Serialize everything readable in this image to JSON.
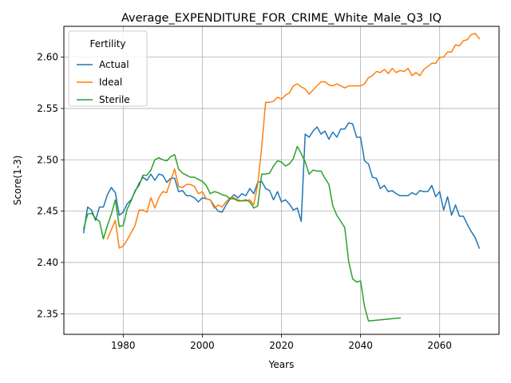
{
  "chart_data": {
    "type": "line",
    "title": "Average_EXPENDITURE_FOR_CRIME_White_Male_Q3_IQ",
    "xlabel": "Years",
    "ylabel": "Score(1-3)",
    "xlim": [
      1965,
      2075
    ],
    "ylim": [
      2.33,
      2.63
    ],
    "xticks": [
      1980,
      2000,
      2020,
      2040,
      2060
    ],
    "yticks": [
      2.35,
      2.4,
      2.45,
      2.5,
      2.55,
      2.6
    ],
    "ytick_labels": [
      "2.35",
      "2.40",
      "2.45",
      "2.50",
      "2.55",
      "2.60"
    ],
    "grid": true,
    "legend": {
      "title": "Fertility",
      "position": "upper-left"
    },
    "series": [
      {
        "name": "Actual",
        "color": "#1f77b4",
        "points": [
          [
            1970,
            2.429
          ],
          [
            1971,
            2.454
          ],
          [
            1972,
            2.451
          ],
          [
            1973,
            2.441
          ],
          [
            1974,
            2.454
          ],
          [
            1975,
            2.454
          ],
          [
            1976,
            2.466
          ],
          [
            1977,
            2.473
          ],
          [
            1978,
            2.468
          ],
          [
            1979,
            2.446
          ],
          [
            1980,
            2.449
          ],
          [
            1981,
            2.457
          ],
          [
            1982,
            2.461
          ],
          [
            1983,
            2.469
          ],
          [
            1984,
            2.477
          ],
          [
            1985,
            2.483
          ],
          [
            1986,
            2.48
          ],
          [
            1987,
            2.486
          ],
          [
            1988,
            2.48
          ],
          [
            1989,
            2.486
          ],
          [
            1990,
            2.485
          ],
          [
            1991,
            2.478
          ],
          [
            1992,
            2.482
          ],
          [
            1993,
            2.482
          ],
          [
            1994,
            2.469
          ],
          [
            1995,
            2.47
          ],
          [
            1996,
            2.465
          ],
          [
            1997,
            2.465
          ],
          [
            1998,
            2.463
          ],
          [
            1999,
            2.459
          ],
          [
            2000,
            2.463
          ],
          [
            2001,
            2.462
          ],
          [
            2002,
            2.461
          ],
          [
            2003,
            2.455
          ],
          [
            2004,
            2.45
          ],
          [
            2005,
            2.449
          ],
          [
            2006,
            2.456
          ],
          [
            2007,
            2.462
          ],
          [
            2008,
            2.466
          ],
          [
            2009,
            2.463
          ],
          [
            2010,
            2.467
          ],
          [
            2011,
            2.465
          ],
          [
            2012,
            2.472
          ],
          [
            2013,
            2.467
          ],
          [
            2014,
            2.478
          ],
          [
            2015,
            2.479
          ],
          [
            2016,
            2.472
          ],
          [
            2017,
            2.47
          ],
          [
            2018,
            2.461
          ],
          [
            2019,
            2.469
          ],
          [
            2020,
            2.459
          ],
          [
            2021,
            2.461
          ],
          [
            2022,
            2.457
          ],
          [
            2023,
            2.451
          ],
          [
            2024,
            2.453
          ],
          [
            2025,
            2.44
          ],
          [
            2026,
            2.525
          ],
          [
            2027,
            2.522
          ],
          [
            2028,
            2.528
          ],
          [
            2029,
            2.532
          ],
          [
            2030,
            2.525
          ],
          [
            2031,
            2.528
          ],
          [
            2032,
            2.52
          ],
          [
            2033,
            2.527
          ],
          [
            2034,
            2.522
          ],
          [
            2035,
            2.53
          ],
          [
            2036,
            2.53
          ],
          [
            2037,
            2.536
          ],
          [
            2038,
            2.535
          ],
          [
            2039,
            2.522
          ],
          [
            2040,
            2.522
          ],
          [
            2041,
            2.499
          ],
          [
            2042,
            2.496
          ],
          [
            2043,
            2.483
          ],
          [
            2044,
            2.482
          ],
          [
            2045,
            2.472
          ],
          [
            2046,
            2.475
          ],
          [
            2047,
            2.469
          ],
          [
            2048,
            2.47
          ],
          [
            2049,
            2.467
          ],
          [
            2050,
            2.465
          ],
          [
            2051,
            2.465
          ],
          [
            2052,
            2.465
          ],
          [
            2053,
            2.468
          ],
          [
            2054,
            2.466
          ],
          [
            2055,
            2.47
          ],
          [
            2056,
            2.469
          ],
          [
            2057,
            2.469
          ],
          [
            2058,
            2.475
          ],
          [
            2059,
            2.464
          ],
          [
            2060,
            2.469
          ],
          [
            2061,
            2.451
          ],
          [
            2062,
            2.464
          ],
          [
            2063,
            2.446
          ],
          [
            2064,
            2.456
          ],
          [
            2065,
            2.445
          ],
          [
            2066,
            2.445
          ],
          [
            2067,
            2.437
          ],
          [
            2068,
            2.43
          ],
          [
            2069,
            2.424
          ],
          [
            2070,
            2.414
          ]
        ]
      },
      {
        "name": "Ideal",
        "color": "#ff7f0e",
        "points": [
          [
            1976,
            2.423
          ],
          [
            1977,
            2.432
          ],
          [
            1978,
            2.441
          ],
          [
            1979,
            2.414
          ],
          [
            1980,
            2.416
          ],
          [
            1981,
            2.422
          ],
          [
            1982,
            2.429
          ],
          [
            1983,
            2.436
          ],
          [
            1984,
            2.451
          ],
          [
            1985,
            2.451
          ],
          [
            1986,
            2.449
          ],
          [
            1987,
            2.463
          ],
          [
            1988,
            2.453
          ],
          [
            1989,
            2.463
          ],
          [
            1990,
            2.469
          ],
          [
            1991,
            2.468
          ],
          [
            1992,
            2.48
          ],
          [
            1993,
            2.491
          ],
          [
            1994,
            2.474
          ],
          [
            1995,
            2.473
          ],
          [
            1996,
            2.476
          ],
          [
            1997,
            2.476
          ],
          [
            1998,
            2.474
          ],
          [
            1999,
            2.467
          ],
          [
            2000,
            2.469
          ],
          [
            2001,
            2.462
          ],
          [
            2002,
            2.461
          ],
          [
            2003,
            2.453
          ],
          [
            2004,
            2.456
          ],
          [
            2005,
            2.454
          ],
          [
            2006,
            2.459
          ],
          [
            2007,
            2.463
          ],
          [
            2008,
            2.463
          ],
          [
            2009,
            2.461
          ],
          [
            2010,
            2.46
          ],
          [
            2011,
            2.46
          ],
          [
            2012,
            2.461
          ],
          [
            2013,
            2.456
          ],
          [
            2014,
            2.476
          ],
          [
            2015,
            2.512
          ],
          [
            2016,
            2.556
          ],
          [
            2017,
            2.556
          ],
          [
            2018,
            2.557
          ],
          [
            2019,
            2.561
          ],
          [
            2020,
            2.559
          ],
          [
            2021,
            2.563
          ],
          [
            2022,
            2.565
          ],
          [
            2023,
            2.572
          ],
          [
            2024,
            2.574
          ],
          [
            2025,
            2.571
          ],
          [
            2026,
            2.569
          ],
          [
            2027,
            2.564
          ],
          [
            2028,
            2.568
          ],
          [
            2029,
            2.572
          ],
          [
            2030,
            2.576
          ],
          [
            2031,
            2.576
          ],
          [
            2032,
            2.573
          ],
          [
            2033,
            2.572
          ],
          [
            2034,
            2.574
          ],
          [
            2035,
            2.572
          ],
          [
            2036,
            2.57
          ],
          [
            2037,
            2.572
          ],
          [
            2038,
            2.572
          ],
          [
            2039,
            2.572
          ],
          [
            2040,
            2.572
          ],
          [
            2041,
            2.574
          ],
          [
            2042,
            2.58
          ],
          [
            2043,
            2.582
          ],
          [
            2044,
            2.586
          ],
          [
            2045,
            2.585
          ],
          [
            2046,
            2.588
          ],
          [
            2047,
            2.584
          ],
          [
            2048,
            2.589
          ],
          [
            2049,
            2.585
          ],
          [
            2050,
            2.587
          ],
          [
            2051,
            2.586
          ],
          [
            2052,
            2.589
          ],
          [
            2053,
            2.582
          ],
          [
            2054,
            2.585
          ],
          [
            2055,
            2.582
          ],
          [
            2056,
            2.588
          ],
          [
            2057,
            2.591
          ],
          [
            2058,
            2.594
          ],
          [
            2059,
            2.594
          ],
          [
            2060,
            2.6
          ],
          [
            2061,
            2.6
          ],
          [
            2062,
            2.605
          ],
          [
            2063,
            2.605
          ],
          [
            2064,
            2.612
          ],
          [
            2065,
            2.611
          ],
          [
            2066,
            2.616
          ],
          [
            2067,
            2.617
          ],
          [
            2068,
            2.622
          ],
          [
            2069,
            2.623
          ],
          [
            2070,
            2.618
          ]
        ]
      },
      {
        "name": "Sterile",
        "color": "#2ca02c",
        "points": [
          [
            1970,
            2.433
          ],
          [
            1971,
            2.447
          ],
          [
            1972,
            2.448
          ],
          [
            1973,
            2.443
          ],
          [
            1974,
            2.44
          ],
          [
            1975,
            2.423
          ],
          [
            1976,
            2.436
          ],
          [
            1977,
            2.447
          ],
          [
            1978,
            2.461
          ],
          [
            1979,
            2.435
          ],
          [
            1980,
            2.436
          ],
          [
            1981,
            2.452
          ],
          [
            1982,
            2.46
          ],
          [
            1983,
            2.47
          ],
          [
            1984,
            2.475
          ],
          [
            1985,
            2.485
          ],
          [
            1986,
            2.485
          ],
          [
            1987,
            2.49
          ],
          [
            1988,
            2.5
          ],
          [
            1989,
            2.502
          ],
          [
            1990,
            2.5
          ],
          [
            1991,
            2.499
          ],
          [
            1992,
            2.503
          ],
          [
            1993,
            2.505
          ],
          [
            1994,
            2.491
          ],
          [
            1995,
            2.487
          ],
          [
            1996,
            2.485
          ],
          [
            1997,
            2.483
          ],
          [
            1998,
            2.483
          ],
          [
            1999,
            2.481
          ],
          [
            2000,
            2.479
          ],
          [
            2001,
            2.475
          ],
          [
            2002,
            2.467
          ],
          [
            2003,
            2.469
          ],
          [
            2004,
            2.468
          ],
          [
            2005,
            2.466
          ],
          [
            2006,
            2.465
          ],
          [
            2007,
            2.462
          ],
          [
            2008,
            2.462
          ],
          [
            2009,
            2.46
          ],
          [
            2010,
            2.46
          ],
          [
            2011,
            2.461
          ],
          [
            2012,
            2.459
          ],
          [
            2013,
            2.453
          ],
          [
            2014,
            2.455
          ],
          [
            2015,
            2.486
          ],
          [
            2016,
            2.486
          ],
          [
            2017,
            2.487
          ],
          [
            2018,
            2.494
          ],
          [
            2019,
            2.499
          ],
          [
            2020,
            2.498
          ],
          [
            2021,
            2.494
          ],
          [
            2022,
            2.496
          ],
          [
            2023,
            2.501
          ],
          [
            2024,
            2.513
          ],
          [
            2025,
            2.506
          ],
          [
            2026,
            2.498
          ],
          [
            2027,
            2.486
          ],
          [
            2028,
            2.49
          ],
          [
            2029,
            2.489
          ],
          [
            2030,
            2.489
          ],
          [
            2031,
            2.482
          ],
          [
            2032,
            2.476
          ],
          [
            2033,
            2.455
          ],
          [
            2034,
            2.446
          ],
          [
            2035,
            2.44
          ],
          [
            2036,
            2.434
          ],
          [
            2037,
            2.401
          ],
          [
            2038,
            2.384
          ],
          [
            2039,
            2.381
          ],
          [
            2040,
            2.382
          ],
          [
            2041,
            2.357
          ],
          [
            2042,
            2.343
          ],
          [
            2050,
            2.346
          ]
        ]
      }
    ]
  }
}
